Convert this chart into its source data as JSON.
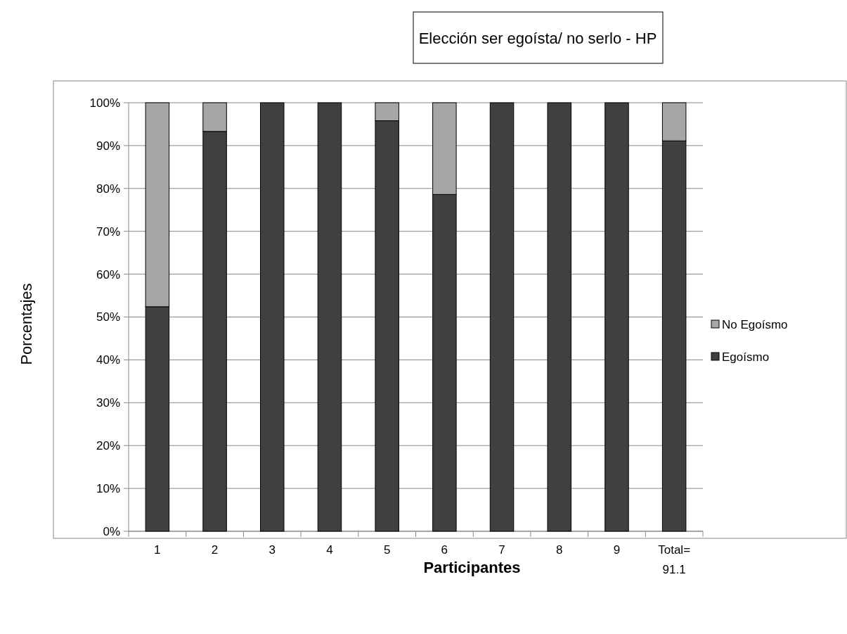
{
  "chart_data": {
    "type": "bar",
    "title": "Elección ser egoísta/ no serlo - HP",
    "xlabel": "Participantes",
    "ylabel": "Porcentajes",
    "stacked": true,
    "legend": "right",
    "categories": [
      "1",
      "2",
      "3",
      "4",
      "5",
      "6",
      "7",
      "8",
      "9",
      "Total= 91.1"
    ],
    "series": [
      {
        "name": "Egoísmo",
        "color": "#404040",
        "values": [
          52.4,
          93.3,
          100,
          100,
          95.8,
          78.6,
          100,
          100,
          100,
          91.1
        ]
      },
      {
        "name": "No Egoísmo",
        "color": "#a6a6a6",
        "values": [
          47.6,
          6.7,
          0,
          0,
          4.2,
          21.4,
          0,
          0,
          0,
          8.9
        ]
      }
    ],
    "ylim": [
      0,
      100
    ],
    "yticks": [
      {
        "value": 0,
        "label": "0%"
      },
      {
        "value": 10,
        "label": "10%"
      },
      {
        "value": 20,
        "label": "20%"
      },
      {
        "value": 30,
        "label": "30%"
      },
      {
        "value": 40,
        "label": "40%"
      },
      {
        "value": 50,
        "label": "50%"
      },
      {
        "value": 60,
        "label": "60%"
      },
      {
        "value": 70,
        "label": "70%"
      },
      {
        "value": 80,
        "label": "80%"
      },
      {
        "value": 90,
        "label": "90%"
      },
      {
        "value": 100,
        "label": "100%"
      }
    ],
    "grid": "y"
  }
}
